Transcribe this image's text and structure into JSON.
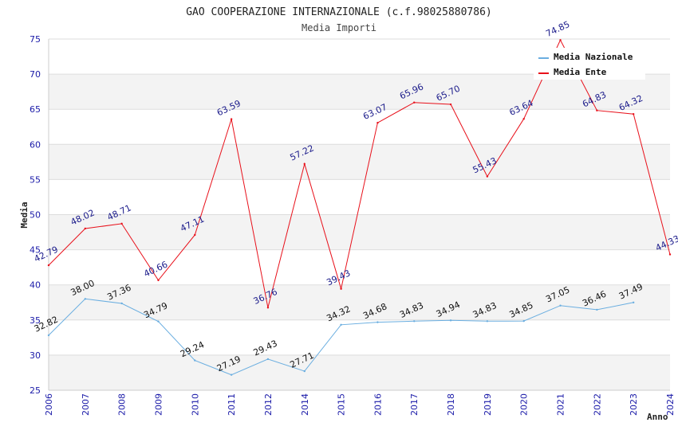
{
  "chart_data": {
    "type": "line",
    "title": "GAO COOPERAZIONE INTERNAZIONALE (c.f.98025880786)",
    "subtitle": "Media Importi",
    "xlabel": "Anno",
    "ylabel": "Media",
    "ylim": [
      25,
      75
    ],
    "yticks": [
      "25",
      "30",
      "35",
      "40",
      "45",
      "50",
      "55",
      "60",
      "65",
      "70",
      "75"
    ],
    "categories": [
      "2006",
      "2007",
      "2008",
      "2009",
      "2010",
      "2011",
      "2012",
      "2014",
      "2015",
      "2016",
      "2017",
      "2018",
      "2019",
      "2020",
      "2021",
      "2022",
      "2023",
      "2024"
    ],
    "legend_position": "top-right",
    "grid": true,
    "series": [
      {
        "name": "Media Nazionale",
        "color": "#6aaee0",
        "values": [
          32.82,
          38.0,
          37.36,
          34.79,
          29.24,
          27.19,
          29.43,
          27.71,
          34.32,
          34.68,
          34.83,
          34.94,
          34.83,
          34.85,
          37.05,
          36.46,
          37.49,
          null
        ],
        "labels": [
          "32.82",
          "38.00",
          "37.36",
          "34.79",
          "29.24",
          "27.19",
          "29.43",
          "27.71",
          "34.32",
          "34.68",
          "34.83",
          "34.94",
          "34.83",
          "34.85",
          "37.05",
          "36.46",
          "37.49",
          null
        ]
      },
      {
        "name": "Media Ente",
        "color": "#e8101a",
        "values": [
          42.79,
          48.02,
          48.71,
          40.66,
          47.11,
          63.59,
          36.76,
          57.22,
          39.43,
          63.07,
          65.96,
          65.7,
          55.43,
          63.64,
          74.85,
          64.83,
          64.32,
          44.33
        ],
        "labels": [
          "42.79",
          "48.02",
          "48.71",
          "40.66",
          "47.11",
          "63.59",
          "36.76",
          "57.22",
          "39.43",
          "63.07",
          "65.96",
          "65.70",
          "55.43",
          "63.64",
          "74.85",
          "64.83",
          "64.32",
          "44.33"
        ]
      }
    ]
  }
}
